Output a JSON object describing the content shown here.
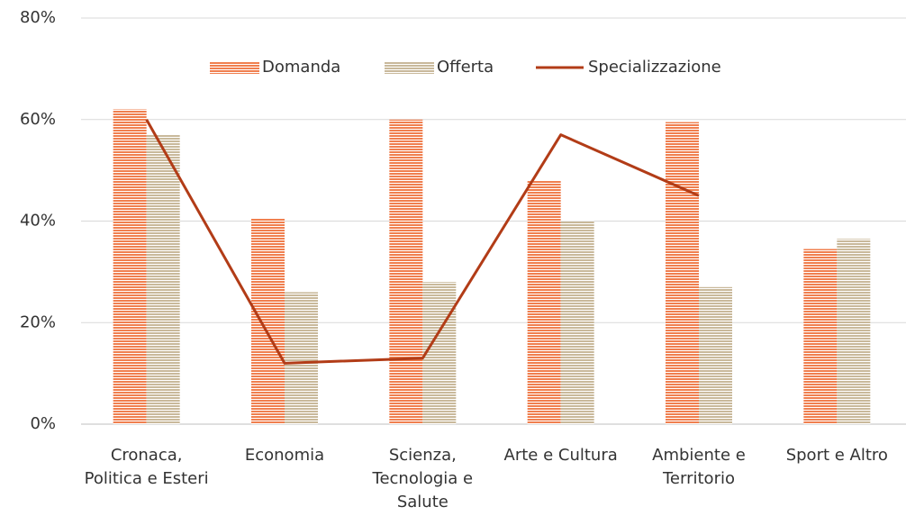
{
  "chart_data": {
    "type": "bar",
    "categories": [
      "Cronaca, Politica e Esteri",
      "Economia",
      "Scienza, Tecnologia e Salute",
      "Arte e Cultura",
      "Ambiente e Territorio",
      "Sport e Altro"
    ],
    "series": [
      {
        "name": "Domanda",
        "type": "bar",
        "color": "#f07f4f",
        "values": [
          62,
          40.5,
          60,
          48,
          59.5,
          34.5
        ]
      },
      {
        "name": "Offerta",
        "type": "bar",
        "color": "#c9b99b",
        "values": [
          57,
          26,
          28,
          40,
          27,
          36.5
        ]
      },
      {
        "name": "Specializzazione",
        "type": "line",
        "color": "#b23c17",
        "values": [
          60,
          12,
          13,
          57,
          45,
          null
        ]
      }
    ],
    "ylim": [
      0,
      80
    ],
    "yticks": [
      {
        "value": 0,
        "label": "0%"
      },
      {
        "value": 20,
        "label": "20%"
      },
      {
        "value": 40,
        "label": "40%"
      },
      {
        "value": 60,
        "label": "60%"
      },
      {
        "value": 80,
        "label": "80%"
      }
    ],
    "grid": true,
    "legend": "top"
  }
}
